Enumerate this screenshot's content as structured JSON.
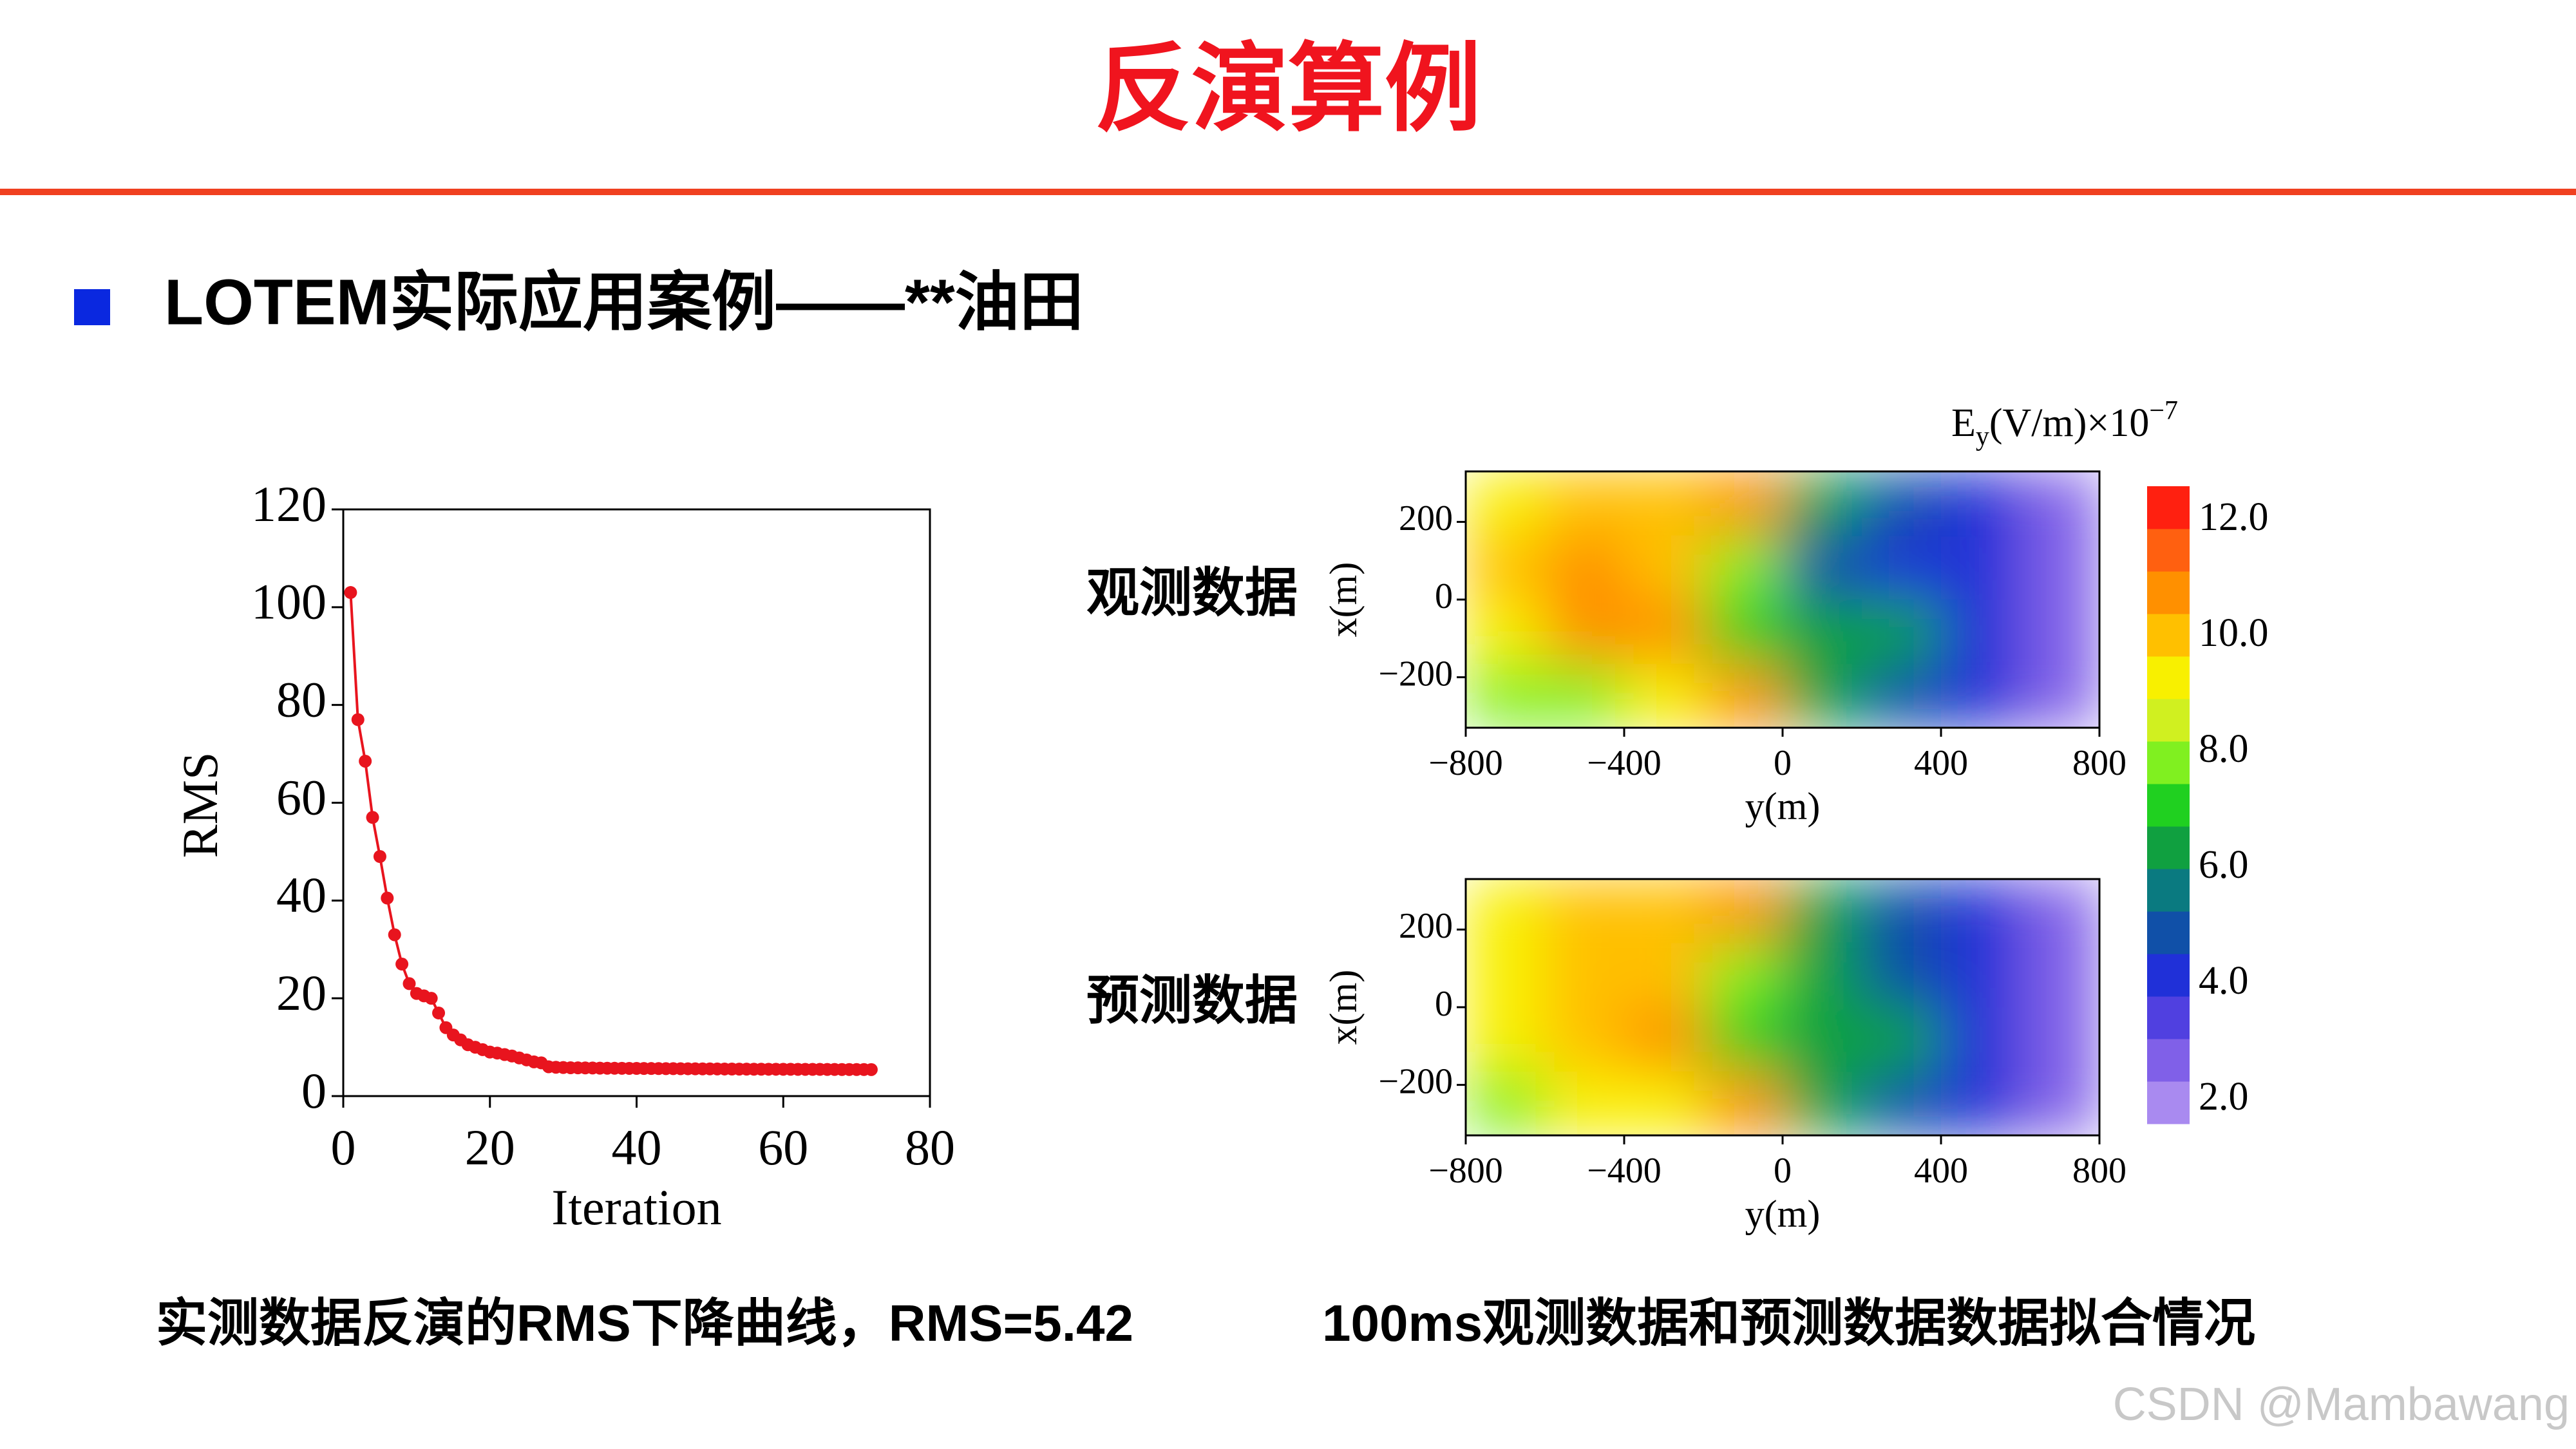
{
  "header": {
    "title": "反演算例"
  },
  "section": {
    "title": "LOTEM实际应用案例——**油田"
  },
  "chart_data": [
    {
      "type": "line",
      "xlabel": "Iteration",
      "ylabel": "RMS",
      "color": "#e8141e",
      "x": [
        1,
        2,
        3,
        4,
        5,
        6,
        7,
        8,
        9,
        10,
        11,
        12,
        13,
        14,
        15,
        16,
        17,
        18,
        19,
        20,
        21,
        22,
        23,
        24,
        25,
        26,
        27,
        28,
        29,
        30,
        31,
        32,
        33,
        34,
        35,
        36,
        37,
        38,
        39,
        40,
        41,
        42,
        43,
        44,
        45,
        46,
        47,
        48,
        49,
        50,
        51,
        52,
        53,
        54,
        55,
        56,
        57,
        58,
        59,
        60,
        61,
        62,
        63,
        64,
        65,
        66,
        67,
        68,
        69,
        70,
        71,
        72
      ],
      "values": [
        103,
        77,
        68.5,
        57,
        49,
        40.5,
        33,
        27,
        23,
        21,
        20.5,
        20,
        17,
        14,
        12.5,
        11.5,
        10.5,
        10,
        9.5,
        9,
        8.8,
        8.5,
        8.2,
        7.8,
        7.4,
        7.0,
        6.8,
        6.0,
        5.9,
        5.85,
        5.8,
        5.78,
        5.76,
        5.74,
        5.72,
        5.7,
        5.69,
        5.68,
        5.67,
        5.66,
        5.65,
        5.64,
        5.63,
        5.62,
        5.61,
        5.6,
        5.59,
        5.58,
        5.57,
        5.56,
        5.55,
        5.54,
        5.53,
        5.52,
        5.51,
        5.5,
        5.5,
        5.49,
        5.49,
        5.48,
        5.48,
        5.47,
        5.47,
        5.46,
        5.46,
        5.45,
        5.45,
        5.44,
        5.44,
        5.43,
        5.43,
        5.42
      ],
      "xlim": [
        0,
        80
      ],
      "xticks": [
        0,
        20,
        40,
        60,
        80
      ],
      "ylim": [
        0,
        120
      ],
      "yticks": [
        0,
        20,
        40,
        60,
        80,
        100,
        120
      ]
    },
    {
      "type": "heatmap",
      "side_label": "观测数据",
      "xlabel": "y(m)",
      "ylabel": "x(m)",
      "xlim": [
        -800,
        800
      ],
      "ylim": [
        -330,
        330
      ],
      "xticks": [
        {
          "value": -800,
          "label": "−800"
        },
        {
          "value": -400,
          "label": "−400"
        },
        0,
        400,
        800
      ],
      "yticks": [
        200,
        0,
        {
          "value": -200,
          "label": "−200"
        }
      ],
      "z": [
        [
          9,
          10,
          10,
          11,
          6,
          5,
          4,
          2.5
        ],
        [
          10,
          11,
          10,
          8,
          5,
          4.5,
          4,
          3
        ],
        [
          9,
          11,
          11,
          7,
          6,
          6,
          4,
          3
        ],
        [
          8,
          8,
          9,
          11,
          6,
          5,
          4,
          3
        ]
      ]
    },
    {
      "type": "heatmap",
      "side_label": "预测数据",
      "xlabel": "y(m)",
      "ylabel": "x(m)",
      "xlim": [
        -800,
        800
      ],
      "ylim": [
        -330,
        330
      ],
      "xticks": [
        {
          "value": -800,
          "label": "−800"
        },
        {
          "value": -400,
          "label": "−400"
        },
        0,
        400,
        800
      ],
      "yticks": [
        200,
        0,
        {
          "value": -200,
          "label": "−200"
        }
      ],
      "z": [
        [
          9,
          10,
          10,
          11,
          6,
          5,
          4,
          2.5
        ],
        [
          9,
          10,
          10,
          8,
          6,
          5,
          4,
          3
        ],
        [
          9,
          10,
          11,
          7,
          6,
          6,
          4,
          3
        ],
        [
          8,
          9,
          9,
          11,
          6,
          5,
          4,
          3
        ]
      ]
    },
    {
      "type": "colorbar",
      "label": {
        "base": "E",
        "sub": "y",
        "main": "(V/m)×10",
        "sup": "−7"
      },
      "clim": [
        1.6,
        12.6
      ],
      "ticks": [
        {
          "value": 2,
          "label": "2.0"
        },
        {
          "value": 4,
          "label": "4.0"
        },
        {
          "value": 6,
          "label": "6.0"
        },
        {
          "value": 8,
          "label": "8.0"
        },
        {
          "value": 10,
          "label": "10.0"
        },
        {
          "value": 12,
          "label": "12.0"
        }
      ],
      "colors": [
        "#a98af0",
        "#8060e8",
        "#5040e0",
        "#2030d8",
        "#1050a8",
        "#0a7a80",
        "#10a040",
        "#20d020",
        "#80f020",
        "#d0f020",
        "#f8f000",
        "#ffc000",
        "#ff9000",
        "#ff6010",
        "#ff2010"
      ]
    }
  ],
  "captions": [
    "实测数据反演的RMS下降曲线，RMS=5.42",
    "100ms观测数据和预测数据数据拟合情况"
  ],
  "watermark": "CSDN @Mambawang"
}
